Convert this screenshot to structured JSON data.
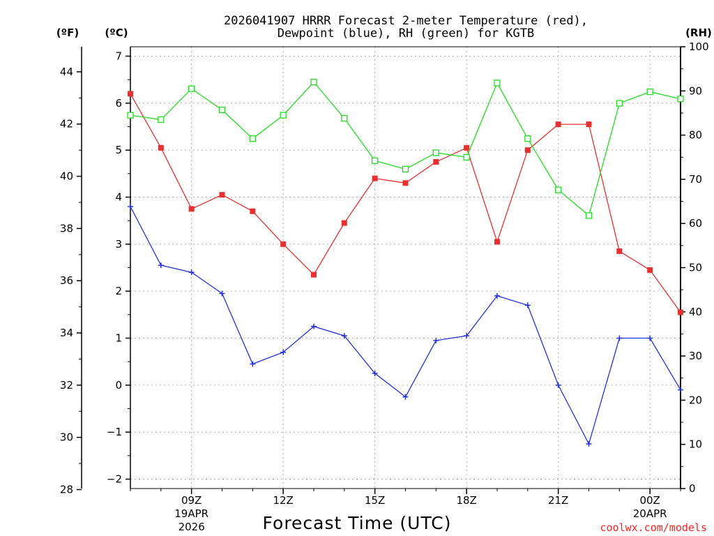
{
  "chart_data": {
    "type": "line",
    "title_line1": "2026041907 HRRR Forecast 2-meter Temperature (red),",
    "title_line2": "Dewpoint (blue), RH (green) for KGTB",
    "xlabel": "Forecast Time (UTC)",
    "credit": "coolwx.com/models",
    "left_far_unit": "(ºF)",
    "left_unit": "(ºC)",
    "right_unit": "(RH)",
    "x_hours": [
      7,
      8,
      9,
      10,
      11,
      12,
      13,
      14,
      15,
      16,
      17,
      18,
      19,
      20,
      21,
      22,
      23,
      0,
      1
    ],
    "x_ticks": [
      {
        "label": "09Z",
        "index": 2
      },
      {
        "label": "12Z",
        "index": 5
      },
      {
        "label": "15Z",
        "index": 8
      },
      {
        "label": "18Z",
        "index": 11
      },
      {
        "label": "21Z",
        "index": 14
      },
      {
        "label": "00Z",
        "index": 17
      }
    ],
    "date_labels": [
      {
        "index": 2,
        "line1": "19APR",
        "line2": "2026"
      },
      {
        "index": 17,
        "line1": "20APR",
        "line2": ""
      }
    ],
    "celsius_axis": {
      "min": -2.2,
      "max": 7.2,
      "ticks": [
        -2,
        -1,
        0,
        1,
        2,
        3,
        4,
        5,
        6,
        7
      ]
    },
    "fahrenheit_axis": {
      "ticks": [
        28,
        30,
        32,
        34,
        36,
        38,
        40,
        42,
        44
      ]
    },
    "rh_axis": {
      "min": 0,
      "max": 100,
      "ticks": [
        0,
        10,
        20,
        30,
        40,
        50,
        60,
        70,
        80,
        90,
        100
      ]
    },
    "series": [
      {
        "name": "Temperature",
        "color": "#e83030",
        "marker": "filled-square",
        "axis": "celsius",
        "values": [
          6.2,
          5.05,
          3.75,
          4.05,
          3.7,
          3.0,
          2.35,
          3.45,
          4.4,
          4.3,
          4.75,
          5.05,
          3.05,
          5.0,
          5.55,
          5.55,
          2.85,
          2.45,
          1.55
        ]
      },
      {
        "name": "Dewpoint",
        "color": "#2030e0",
        "marker": "plus",
        "axis": "celsius",
        "values": [
          3.8,
          2.55,
          2.4,
          1.95,
          0.45,
          0.7,
          1.25,
          1.05,
          0.25,
          -0.25,
          0.95,
          1.05,
          1.9,
          1.7,
          0.0,
          -1.25,
          1.0,
          1.0,
          -0.1
        ]
      },
      {
        "name": "RH",
        "color": "#22dd22",
        "marker": "open-square",
        "axis": "rh",
        "values": [
          84.5,
          83.5,
          90.5,
          85.7,
          79.2,
          84.5,
          92.0,
          83.8,
          74.2,
          72.3,
          76.0,
          75.0,
          91.8,
          79.2,
          67.6,
          61.8,
          87.2,
          89.8,
          88.2
        ]
      }
    ]
  }
}
